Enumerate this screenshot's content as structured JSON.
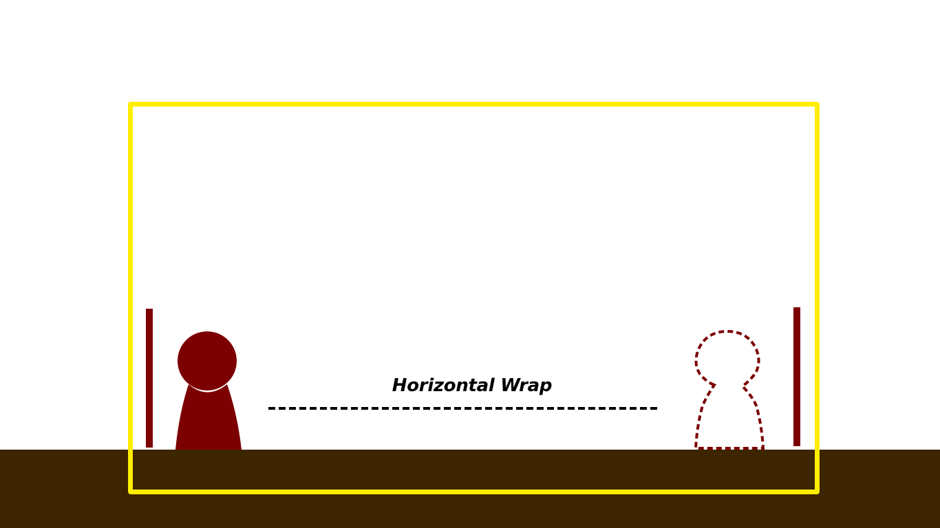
{
  "scene": {
    "hint_text": "Horizontal Wrap",
    "icons": {
      "player": "player-pawn-icon",
      "ghost": "player-ghost-icon",
      "wall": "wall-bar-icon"
    },
    "colors": {
      "background": "#ffffff",
      "ground": "#3d2502",
      "frame": "#ffee00",
      "player": "#7d0000",
      "wall": "#7d0000",
      "dash": "#000000",
      "label": "#000000"
    }
  }
}
